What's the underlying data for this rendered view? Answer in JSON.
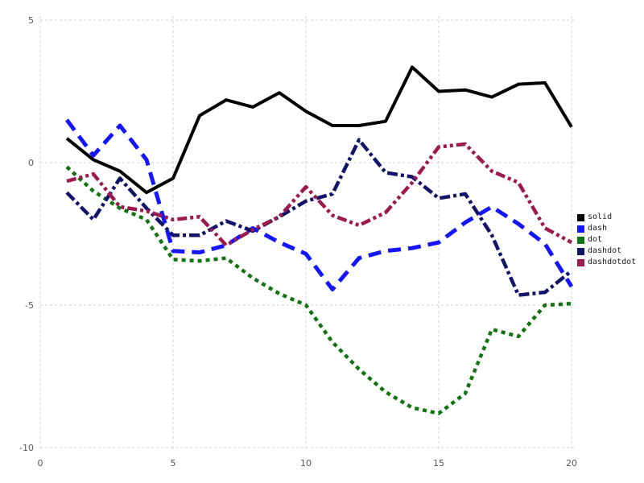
{
  "figure": {
    "background": "#ffffff",
    "grid_color": "#ccd2de",
    "tick_label_color": "#55575c",
    "legend_text_color": "#1b1b1b"
  },
  "chart_data": {
    "type": "line",
    "title": "",
    "xlabel": "",
    "ylabel": "",
    "grid": true,
    "legend_position": "right",
    "xlim": [
      0,
      20
    ],
    "ylim": [
      -10,
      5
    ],
    "x_ticks": [
      "0",
      "5",
      "10",
      "15",
      "20"
    ],
    "x_tick_values": [
      0,
      5,
      10,
      15,
      20
    ],
    "y_ticks": [
      "5",
      "0",
      "-5",
      "-10"
    ],
    "y_tick_values": [
      5,
      0,
      -5,
      -10
    ],
    "x": [
      1,
      2,
      3,
      4,
      5,
      6,
      7,
      8,
      9,
      10,
      11,
      12,
      13,
      14,
      15,
      16,
      17,
      18,
      19,
      20
    ],
    "series": [
      {
        "name": "solid",
        "color": "#000000",
        "dash_style": "solid",
        "values": [
          0.85,
          0.1,
          -0.3,
          -1.05,
          -0.55,
          1.65,
          2.2,
          1.95,
          2.45,
          1.8,
          1.3,
          1.3,
          1.45,
          3.35,
          2.5,
          2.55,
          2.3,
          2.75,
          2.8,
          1.25
        ]
      },
      {
        "name": "dash",
        "color": "#1515fa",
        "dash_style": "dash",
        "values": [
          1.5,
          0.25,
          1.3,
          0.1,
          -3.1,
          -3.15,
          -2.9,
          -2.3,
          -2.8,
          -3.2,
          -4.45,
          -3.35,
          -3.1,
          -3.0,
          -2.8,
          -2.1,
          -1.55,
          -2.15,
          -2.85,
          -4.35
        ]
      },
      {
        "name": "dot",
        "color": "#107410",
        "dash_style": "dot",
        "values": [
          -0.15,
          -1.0,
          -1.6,
          -2.0,
          -3.4,
          -3.45,
          -3.35,
          -4.05,
          -4.6,
          -5.0,
          -6.3,
          -7.25,
          -8.05,
          -8.6,
          -8.8,
          -8.1,
          -5.85,
          -6.1,
          -5.0,
          -4.95
        ]
      },
      {
        "name": "dashdot",
        "color": "#13136a",
        "dash_style": "dashdot",
        "values": [
          -1.05,
          -2.0,
          -0.55,
          -1.6,
          -2.55,
          -2.55,
          -2.05,
          -2.4,
          -1.9,
          -1.35,
          -1.1,
          0.8,
          -0.35,
          -0.5,
          -1.25,
          -1.1,
          -2.55,
          -4.65,
          -4.55,
          -3.8
        ]
      },
      {
        "name": "dashdotdot",
        "color": "#9c1a4e",
        "dash_style": "dashdotdot",
        "values": [
          -0.65,
          -0.4,
          -1.55,
          -1.7,
          -2.0,
          -1.9,
          -2.9,
          -2.35,
          -1.9,
          -0.85,
          -1.85,
          -2.2,
          -1.75,
          -0.7,
          0.55,
          0.65,
          -0.3,
          -0.7,
          -2.3,
          -2.8
        ]
      }
    ]
  }
}
